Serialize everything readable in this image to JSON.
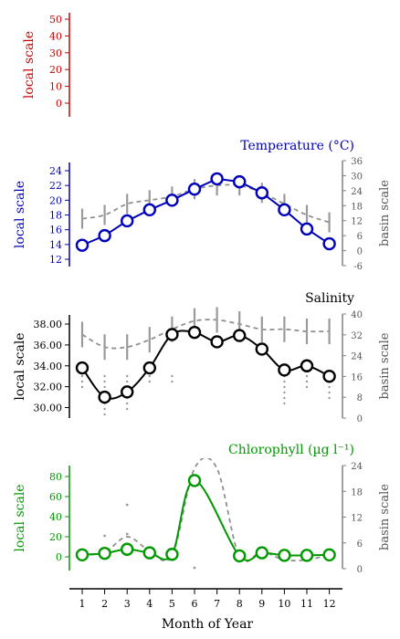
{
  "chart_data": [
    {
      "type": "line",
      "id": "top",
      "title": "",
      "color": "#cc0000",
      "ylabel": "local scale",
      "yticks": [
        "50",
        "40",
        "30",
        "20",
        "10",
        "0"
      ],
      "ylim": [
        -5,
        55
      ],
      "values": []
    },
    {
      "type": "line",
      "id": "temperature",
      "title": "Temperature (°C)",
      "color": "#0000bb",
      "ylabel": "local scale",
      "yticks": [
        "24",
        "22",
        "20",
        "18",
        "16",
        "14",
        "12"
      ],
      "ylim": [
        12,
        24
      ],
      "y2label": "basin scale",
      "y2ticks": [
        "36",
        "30",
        "24",
        "18",
        "12",
        "6",
        "0",
        "-6"
      ],
      "y2lim": [
        -6,
        36
      ],
      "series": [
        {
          "name": "",
          "color": "#0000bb",
          "values": [
            13.9,
            15.2,
            17.2,
            18.7,
            20.0,
            21.5,
            22.9,
            22.5,
            21.0,
            18.7,
            16.1,
            14.1
          ]
        }
      ],
      "basin_mean": [
        17.5,
        18.0,
        19.5,
        20.0,
        20.5,
        21.5,
        22.0,
        22.0,
        21.0,
        19.5,
        18.0,
        17.0
      ]
    },
    {
      "type": "line",
      "id": "salinity",
      "title": "Salinity",
      "color": "#000000",
      "ylabel": "local scale",
      "yticks": [
        "38.00",
        "36.00",
        "34.00",
        "32.00",
        "30.00"
      ],
      "ylim": [
        29,
        38.5
      ],
      "y2label": "basin scale",
      "y2ticks": [
        "40",
        "32",
        "24",
        "16",
        "8",
        "0"
      ],
      "y2lim": [
        0,
        40
      ],
      "series": [
        {
          "name": "",
          "color": "#000000",
          "values": [
            33.8,
            31.0,
            31.5,
            33.8,
            37.0,
            37.2,
            36.3,
            36.9,
            35.6,
            33.6,
            34.0,
            33.0
          ]
        }
      ],
      "basin_mean": [
        37.0,
        35.8,
        35.8,
        36.5,
        37.5,
        38.3,
        38.4,
        38.0,
        37.5,
        37.5,
        37.3,
        37.3
      ]
    },
    {
      "type": "line",
      "id": "chlorophyll",
      "title": "Chlorophyll (µg l⁻¹)",
      "color": "#009900",
      "ylabel": "local scale",
      "yticks": [
        "80",
        "60",
        "40",
        "20",
        "0"
      ],
      "ylim": [
        -8,
        88
      ],
      "y2label": "basin scale",
      "y2ticks": [
        "24",
        "18",
        "12",
        "6",
        "0"
      ],
      "y2lim": [
        0,
        24
      ],
      "series": [
        {
          "name": "",
          "color": "#009900",
          "values": [
            2,
            3.5,
            7.5,
            4,
            2.5,
            76,
            null,
            1,
            4,
            1.5,
            1.5,
            2
          ]
        }
      ],
      "basin_mean": [
        2,
        4.5,
        20,
        6,
        1.5,
        88,
        88,
        0,
        5,
        -3,
        -3,
        2
      ]
    }
  ],
  "x_axis": {
    "label": "Month of Year",
    "ticks": [
      "1",
      "2",
      "3",
      "4",
      "5",
      "6",
      "7",
      "8",
      "9",
      "10",
      "11",
      "12"
    ]
  }
}
